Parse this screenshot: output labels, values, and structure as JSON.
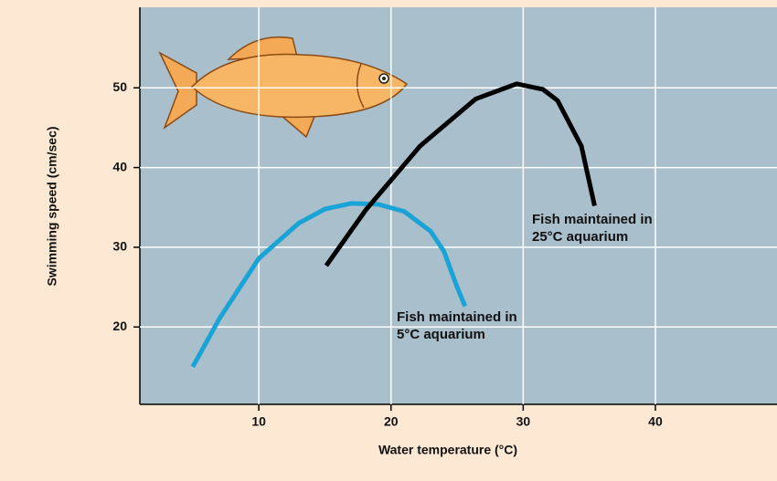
{
  "chart_data": {
    "type": "line",
    "xlabel": "Water temperature (°C)",
    "ylabel": "Swimming speed (cm/sec)",
    "xlim": [
      1,
      49.2
    ],
    "xticks": [
      10,
      20,
      30,
      40
    ],
    "ylim": [
      10.3,
      60.1
    ],
    "yticks": [
      20,
      30,
      40,
      50
    ],
    "grid": true,
    "series": [
      {
        "color": "#1aa3d6",
        "x": [
          5,
          7,
          10,
          13,
          15,
          17,
          19,
          21,
          23,
          24,
          25,
          25.6
        ],
        "values": [
          15,
          21,
          28.6,
          33,
          34.8,
          35.5,
          35.4,
          34.5,
          32,
          29.5,
          25,
          22.6
        ]
      },
      {
        "color": "#000000",
        "x": [
          15.1,
          18.1,
          22.2,
          26.4,
          29.5,
          31.5,
          32.6,
          34.4,
          35.4
        ],
        "values": [
          27.7,
          34.7,
          42.7,
          48.6,
          50.5,
          49.8,
          48.4,
          42.7,
          35.2
        ]
      }
    ],
    "annotations": [
      {
        "lines": [
          "Fish maintained in",
          "25°C aquarium"
        ]
      },
      {
        "lines": [
          "Fish maintained in",
          "5°C aquarium"
        ]
      }
    ]
  }
}
